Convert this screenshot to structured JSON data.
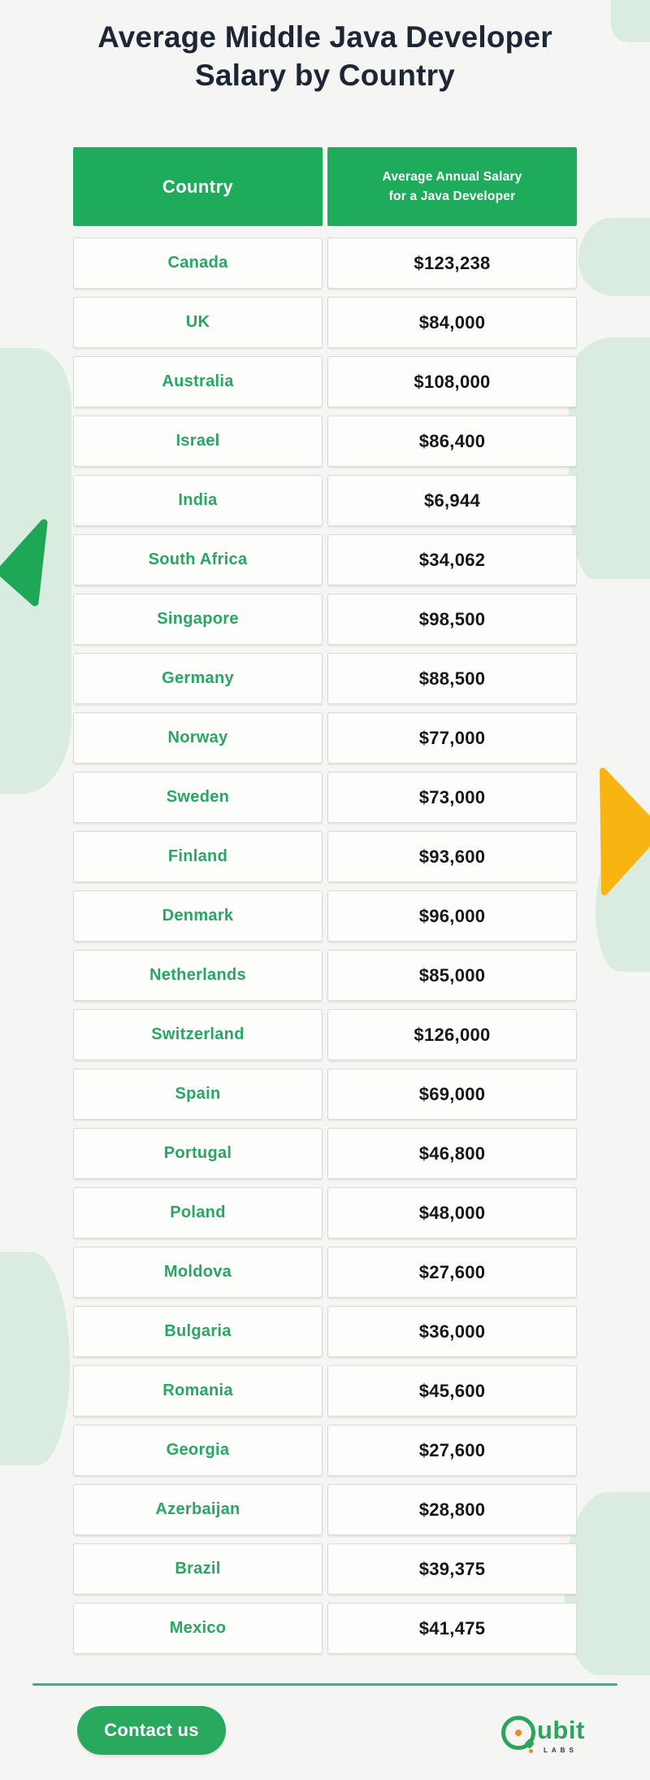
{
  "title": {
    "line1": "Average Middle Java Developer",
    "line2": "Salary by Country"
  },
  "table": {
    "header": {
      "country": "Country",
      "salary_line1": "Average Annual Salary",
      "salary_line2": "for a Java Developer"
    },
    "rows": [
      {
        "country": "Canada",
        "salary": "$123,238"
      },
      {
        "country": "UK",
        "salary": "$84,000"
      },
      {
        "country": "Australia",
        "salary": "$108,000"
      },
      {
        "country": "Israel",
        "salary": "$86,400"
      },
      {
        "country": "India",
        "salary": "$6,944"
      },
      {
        "country": "South Africa",
        "salary": "$34,062"
      },
      {
        "country": "Singapore",
        "salary": "$98,500"
      },
      {
        "country": "Germany",
        "salary": "$88,500"
      },
      {
        "country": "Norway",
        "salary": "$77,000"
      },
      {
        "country": "Sweden",
        "salary": "$73,000"
      },
      {
        "country": "Finland",
        "salary": "$93,600"
      },
      {
        "country": "Denmark",
        "salary": "$96,000"
      },
      {
        "country": "Netherlands",
        "salary": "$85,000"
      },
      {
        "country": "Switzerland",
        "salary": "$126,000"
      },
      {
        "country": "Spain",
        "salary": "$69,000"
      },
      {
        "country": "Portugal",
        "salary": "$46,800"
      },
      {
        "country": "Poland",
        "salary": "$48,000"
      },
      {
        "country": "Moldova",
        "salary": "$27,600"
      },
      {
        "country": "Bulgaria",
        "salary": "$36,000"
      },
      {
        "country": "Romania",
        "salary": "$45,600"
      },
      {
        "country": "Georgia",
        "salary": "$27,600"
      },
      {
        "country": "Azerbaijan",
        "salary": "$28,800"
      },
      {
        "country": "Brazil",
        "salary": "$39,375"
      },
      {
        "country": "Mexico",
        "salary": "$41,475"
      }
    ]
  },
  "chart_data": {
    "type": "table",
    "title": "Average Middle Java Developer Salary by Country",
    "columns": [
      "Country",
      "Average Annual Salary for a Java Developer"
    ],
    "categories": [
      "Canada",
      "UK",
      "Australia",
      "Israel",
      "India",
      "South Africa",
      "Singapore",
      "Germany",
      "Norway",
      "Sweden",
      "Finland",
      "Denmark",
      "Netherlands",
      "Switzerland",
      "Spain",
      "Portugal",
      "Poland",
      "Moldova",
      "Bulgaria",
      "Romania",
      "Georgia",
      "Azerbaijan",
      "Brazil",
      "Mexico"
    ],
    "values": [
      123238,
      84000,
      108000,
      86400,
      6944,
      34062,
      98500,
      88500,
      77000,
      73000,
      93600,
      96000,
      85000,
      126000,
      69000,
      46800,
      48000,
      27600,
      36000,
      45600,
      27600,
      28800,
      39375,
      41475
    ],
    "value_unit": "USD"
  },
  "footer": {
    "contact_button": "Contact us",
    "logo_text": "ubit",
    "logo_sub": "LABS"
  },
  "colors": {
    "page_bg": "#f5f6f3",
    "map_tint": "#daecdf",
    "title_dark": "#1d2634",
    "header_green": "#1fab5c",
    "country_green": "#27a762",
    "salary_dark": "#14161a",
    "arrow_green": "#1ea756",
    "arrow_yellow": "#f8b512",
    "divider": "#57a188",
    "button_green": "#28a95e",
    "logo_green": "#2ba45d",
    "logo_orange": "#f0862c"
  }
}
